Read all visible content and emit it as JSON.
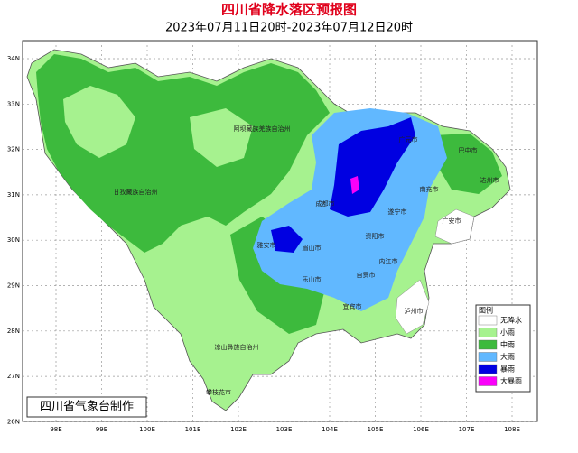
{
  "header": {
    "title": "四川省降水落区预报图",
    "subtitle": "2023年07月11日20时-2023年07月12日20时"
  },
  "map": {
    "lat_labels": [
      "34N",
      "33N",
      "32N",
      "31N",
      "30N",
      "29N",
      "28N",
      "27N",
      "26N"
    ],
    "lon_labels": [
      "98E",
      "99E",
      "100E",
      "101E",
      "102E",
      "103E",
      "104E",
      "105E",
      "106E",
      "107E",
      "108E"
    ],
    "places": [
      "阿坝藏族羌族自治州",
      "甘孜藏族自治州",
      "凉山彝族自治州",
      "攀枝花市",
      "广元市",
      "巴中市",
      "达州市",
      "南充市",
      "遂宁市",
      "广安市",
      "成都市",
      "资阳市",
      "雅安市",
      "眉山市",
      "乐山市",
      "内江市",
      "自贡市",
      "宜宾市",
      "泸州市"
    ]
  },
  "legend": {
    "title": "图例",
    "items": [
      {
        "label": "无降水",
        "color": "#ffffff"
      },
      {
        "label": "小雨",
        "color": "#a6f28f"
      },
      {
        "label": "中雨",
        "color": "#3dba3d"
      },
      {
        "label": "大雨",
        "color": "#61b8ff"
      },
      {
        "label": "暴雨",
        "color": "#0000e1"
      },
      {
        "label": "大暴雨",
        "color": "#fa00fa"
      }
    ]
  },
  "footer": "四川省气象台制作"
}
